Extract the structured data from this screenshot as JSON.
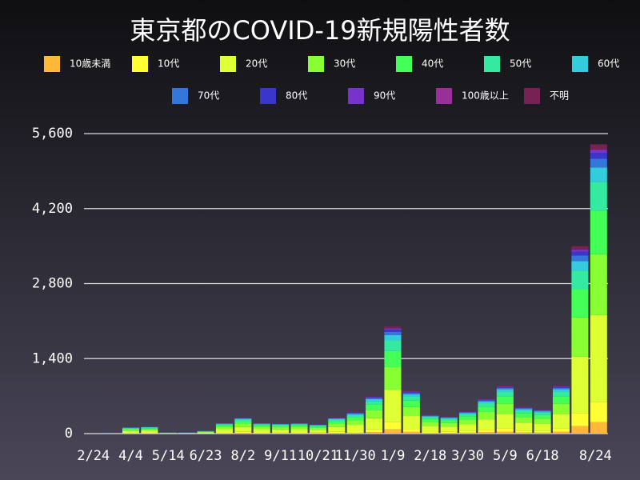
{
  "chart_data": {
    "type": "stacked_bar",
    "title": "東京都のCOVID-19新規陽性者数",
    "categories": [
      "2/24",
      null,
      "4/4",
      null,
      "5/14",
      null,
      "6/23",
      null,
      "8/2",
      null,
      "9/11",
      null,
      "10/21",
      null,
      "11/30",
      null,
      "1/9",
      null,
      "2/18",
      null,
      "3/30",
      null,
      "5/9",
      null,
      "6/18",
      null,
      null,
      "8/24"
    ],
    "series": [
      {
        "name": "10歳未満",
        "color": "#ffb938",
        "values": [
          0,
          0,
          5,
          5,
          1,
          1,
          2,
          8,
          12,
          8,
          8,
          8,
          7,
          12,
          16,
          28,
          80,
          32,
          14,
          13,
          17,
          26,
          36,
          20,
          18,
          36,
          140,
          216
        ]
      },
      {
        "name": "10代",
        "color": "#ffff33",
        "values": [
          0,
          1,
          8,
          9,
          1,
          1,
          4,
          14,
          21,
          14,
          13,
          14,
          12,
          21,
          28,
          49,
          140,
          56,
          25,
          22,
          29,
          46,
          63,
          35,
          32,
          63,
          245,
          378
        ]
      },
      {
        "name": "20代",
        "color": "#ddff33",
        "values": [
          1,
          3,
          36,
          39,
          6,
          6,
          15,
          60,
          90,
          60,
          57,
          60,
          51,
          90,
          120,
          210,
          600,
          240,
          105,
          96,
          126,
          195,
          270,
          150,
          135,
          270,
          1050,
          1620
        ]
      },
      {
        "name": "30代",
        "color": "#88ff33",
        "values": [
          0,
          2,
          25,
          27,
          4,
          4,
          10,
          42,
          63,
          42,
          40,
          42,
          36,
          63,
          84,
          147,
          420,
          168,
          74,
          67,
          88,
          137,
          189,
          105,
          95,
          189,
          735,
          1134
        ]
      },
      {
        "name": "40代",
        "color": "#44ff55",
        "values": [
          0,
          2,
          18,
          20,
          3,
          3,
          8,
          30,
          45,
          30,
          29,
          30,
          26,
          45,
          60,
          105,
          300,
          120,
          53,
          48,
          63,
          98,
          135,
          75,
          68,
          135,
          525,
          810
        ]
      },
      {
        "name": "50代",
        "color": "#33eaa0",
        "values": [
          0,
          1,
          12,
          13,
          2,
          2,
          5,
          20,
          30,
          20,
          19,
          20,
          17,
          30,
          40,
          70,
          200,
          80,
          35,
          32,
          42,
          65,
          90,
          50,
          45,
          90,
          350,
          540
        ]
      },
      {
        "name": "60代",
        "color": "#33ccdd",
        "values": [
          0,
          1,
          6,
          7,
          1,
          1,
          3,
          10,
          15,
          10,
          10,
          10,
          9,
          15,
          20,
          35,
          100,
          40,
          18,
          16,
          21,
          33,
          45,
          25,
          23,
          45,
          175,
          270
        ]
      },
      {
        "name": "70代",
        "color": "#3377dd",
        "values": [
          0,
          0,
          4,
          4,
          1,
          1,
          1,
          6,
          9,
          6,
          6,
          6,
          5,
          9,
          12,
          21,
          60,
          24,
          11,
          10,
          13,
          20,
          27,
          15,
          14,
          27,
          105,
          162
        ]
      },
      {
        "name": "80代",
        "color": "#3a36cc",
        "values": [
          0,
          0,
          2,
          3,
          1,
          1,
          1,
          4,
          6,
          4,
          4,
          4,
          3,
          6,
          8,
          14,
          40,
          16,
          7,
          6,
          8,
          13,
          18,
          10,
          9,
          18,
          70,
          108
        ]
      },
      {
        "name": "90代",
        "color": "#7733cc",
        "values": [
          0,
          0,
          1,
          1,
          0,
          0,
          0,
          2,
          3,
          2,
          2,
          2,
          2,
          3,
          4,
          7,
          20,
          8,
          4,
          3,
          4,
          7,
          9,
          5,
          5,
          9,
          35,
          54
        ]
      },
      {
        "name": "100歳以上",
        "color": "#992f99",
        "values": [
          0,
          0,
          0,
          0,
          0,
          0,
          0,
          0,
          1,
          0,
          0,
          0,
          0,
          1,
          1,
          1,
          4,
          2,
          1,
          1,
          1,
          1,
          2,
          1,
          1,
          2,
          7,
          11
        ]
      },
      {
        "name": "不明",
        "color": "#772255",
        "values": [
          0,
          0,
          3,
          2,
          0,
          0,
          1,
          4,
          5,
          4,
          2,
          4,
          2,
          5,
          7,
          13,
          36,
          14,
          3,
          6,
          8,
          9,
          16,
          9,
          5,
          16,
          63,
          97
        ]
      }
    ],
    "ylim": [
      0,
      5600
    ],
    "yticks": [
      0,
      {
        "value": 1400,
        "label": "1,400"
      },
      {
        "value": 2800,
        "label": "2,800"
      },
      {
        "value": 4200,
        "label": "4,200"
      },
      {
        "value": 5600,
        "label": "5,600"
      }
    ],
    "grid": true
  }
}
